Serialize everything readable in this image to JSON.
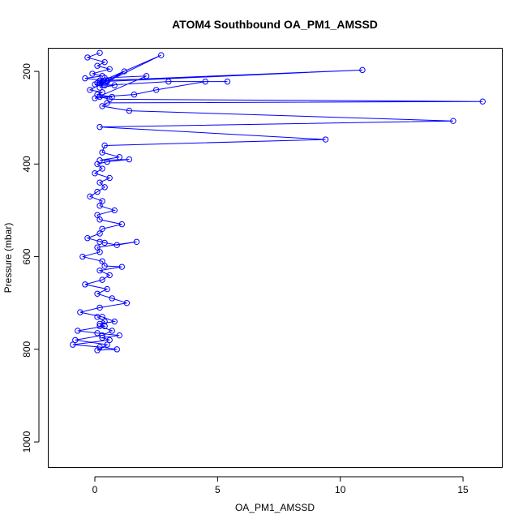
{
  "chart_data": {
    "type": "line",
    "title": "ATOM4 Southbound OA_PM1_AMSSD",
    "xlabel": "OA_PM1_AMSSD",
    "ylabel": "Pressure (mbar)",
    "xlim": [
      -1.9,
      16.6
    ],
    "ylim": [
      1055,
      150
    ],
    "y_inverted": true,
    "grid": false,
    "x_ticks": [
      0,
      5,
      10,
      15
    ],
    "y_ticks": [
      200,
      400,
      600,
      800,
      1000
    ],
    "series_color": "#0000ff",
    "series": [
      {
        "x": [
          0.2,
          -0.3,
          0.4,
          0.1,
          0.6,
          -0.1,
          0.3,
          -0.4,
          0.5,
          0.0,
          0.8,
          0.2,
          1.2,
          -0.2,
          0.3,
          0.1,
          0.7,
          0.0,
          2.1,
          0.4,
          0.2,
          10.9,
          0.3,
          0.1,
          2.7,
          0.5,
          0.2,
          0.4,
          3.0,
          5.4,
          4.5,
          2.5,
          1.6,
          0.2,
          0.6,
          15.8,
          0.5,
          0.3,
          1.4,
          14.6,
          0.2,
          9.4,
          0.4,
          0.3,
          1.0,
          0.2,
          1.4,
          0.5,
          0.1,
          0.3,
          0.0,
          0.6,
          0.2,
          0.4,
          0.1,
          -0.2,
          0.3,
          0.2,
          0.8,
          0.1,
          0.2,
          1.1,
          0.3,
          0.2,
          -0.3,
          0.4,
          0.2,
          0.9,
          1.7,
          0.1,
          0.2,
          -0.5,
          0.3,
          0.4,
          1.1,
          0.2,
          0.6,
          0.3,
          -0.4,
          0.5,
          0.1,
          0.7,
          1.3,
          0.2,
          -0.6,
          0.3,
          0.8,
          0.2,
          0.4,
          -0.7,
          0.1,
          1.0,
          0.3,
          0.6,
          -0.9,
          0.2,
          0.9,
          0.1,
          0.5,
          -0.8,
          0.3,
          0.7,
          0.2,
          0.4,
          0.1
        ],
        "y": [
          160,
          170,
          180,
          188,
          195,
          205,
          210,
          215,
          220,
          228,
          230,
          235,
          200,
          240,
          245,
          250,
          255,
          258,
          210,
          214,
          220,
          197,
          222,
          225,
          165,
          222,
          226,
          230,
          222,
          222,
          222,
          240,
          250,
          255,
          260,
          265,
          268,
          275,
          285,
          307,
          320,
          347,
          360,
          375,
          385,
          392,
          390,
          395,
          400,
          410,
          420,
          430,
          440,
          450,
          460,
          470,
          480,
          490,
          500,
          510,
          520,
          530,
          540,
          550,
          560,
          570,
          568,
          575,
          568,
          580,
          590,
          600,
          610,
          620,
          622,
          630,
          640,
          650,
          660,
          670,
          680,
          690,
          700,
          710,
          720,
          730,
          740,
          745,
          750,
          760,
          765,
          770,
          775,
          780,
          790,
          795,
          800,
          802,
          790,
          780,
          770,
          760,
          750,
          740,
          730
        ]
      }
    ]
  }
}
